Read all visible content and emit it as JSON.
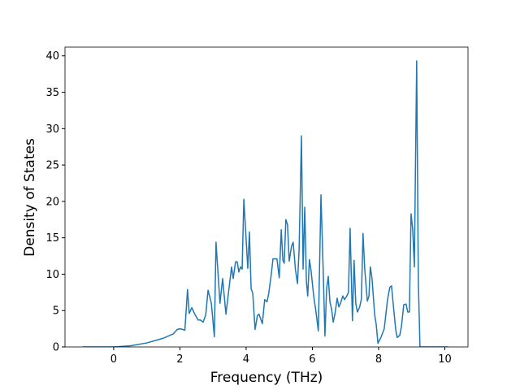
{
  "chart_data": {
    "type": "line",
    "xlabel": "Frequency (THz)",
    "ylabel": "Density of States",
    "x": [
      -0.93,
      0,
      0.5,
      1.0,
      1.5,
      1.8,
      1.92,
      2.0,
      2.09,
      2.15,
      2.23,
      2.28,
      2.36,
      2.45,
      2.55,
      2.62,
      2.7,
      2.78,
      2.85,
      2.95,
      3.04,
      3.09,
      3.21,
      3.29,
      3.39,
      3.56,
      3.61,
      3.68,
      3.73,
      3.78,
      3.83,
      3.88,
      3.93,
      4.05,
      4.1,
      4.15,
      4.2,
      4.27,
      4.34,
      4.39,
      4.49,
      4.56,
      4.63,
      4.68,
      4.76,
      4.81,
      4.93,
      5.0,
      5.06,
      5.11,
      5.15,
      5.2,
      5.25,
      5.3,
      5.37,
      5.42,
      5.49,
      5.55,
      5.6,
      5.67,
      5.72,
      5.77,
      5.82,
      5.86,
      5.91,
      5.96,
      6.04,
      6.11,
      6.18,
      6.26,
      6.33,
      6.38,
      6.43,
      6.48,
      6.53,
      6.58,
      6.63,
      6.68,
      6.75,
      6.8,
      6.85,
      6.92,
      6.97,
      7.04,
      7.09,
      7.14,
      7.21,
      7.26,
      7.31,
      7.36,
      7.43,
      7.48,
      7.53,
      7.58,
      7.66,
      7.71,
      7.75,
      7.8,
      7.88,
      7.93,
      7.98,
      8.07,
      8.17,
      8.27,
      8.34,
      8.39,
      8.46,
      8.52,
      8.56,
      8.64,
      8.69,
      8.76,
      8.83,
      8.88,
      8.93,
      8.98,
      9.03,
      9.08,
      9.15,
      9.2,
      9.25,
      10.1
    ],
    "values": [
      0,
      0,
      0.15,
      0.55,
      1.2,
      1.8,
      2.4,
      2.5,
      2.4,
      2.3,
      7.9,
      4.6,
      5.4,
      4.5,
      3.7,
      3.7,
      3.4,
      4.4,
      7.8,
      6.0,
      1.4,
      14.4,
      6.0,
      9.4,
      4.5,
      11.0,
      9.4,
      11.7,
      11.7,
      10.3,
      11.0,
      10.7,
      20.3,
      10.8,
      15.8,
      8.0,
      7.4,
      2.4,
      4.3,
      4.5,
      3.2,
      6.5,
      6.2,
      7.3,
      10.0,
      12.1,
      12.1,
      9.5,
      16.1,
      11.9,
      11.5,
      17.5,
      16.8,
      11.8,
      13.8,
      14.4,
      10.6,
      8.7,
      13.4,
      29.0,
      10.7,
      19.2,
      9.0,
      7.0,
      12.0,
      10.5,
      7.0,
      4.8,
      2.2,
      20.9,
      10.0,
      1.5,
      8.0,
      9.7,
      6.2,
      5.2,
      3.4,
      4.5,
      6.7,
      5.5,
      6.0,
      7.0,
      6.5,
      7.0,
      7.5,
      16.3,
      3.6,
      11.9,
      6.0,
      4.8,
      5.5,
      6.6,
      15.6,
      10.8,
      6.3,
      7.0,
      11.0,
      9.5,
      4.5,
      3.0,
      0.5,
      1.3,
      2.5,
      6.5,
      8.2,
      8.4,
      5.0,
      2.3,
      1.3,
      1.6,
      2.8,
      5.8,
      5.9,
      4.8,
      4.8,
      18.3,
      16.2,
      11.0,
      39.3,
      9.0,
      0,
      0
    ],
    "color": "#1f77b4",
    "xlim": [
      -1.47,
      10.7
    ],
    "ylim": [
      0,
      41.2
    ],
    "xticks": [
      0,
      2,
      4,
      6,
      8,
      10
    ],
    "yticks": [
      0,
      5,
      10,
      15,
      20,
      25,
      30,
      35,
      40
    ]
  }
}
